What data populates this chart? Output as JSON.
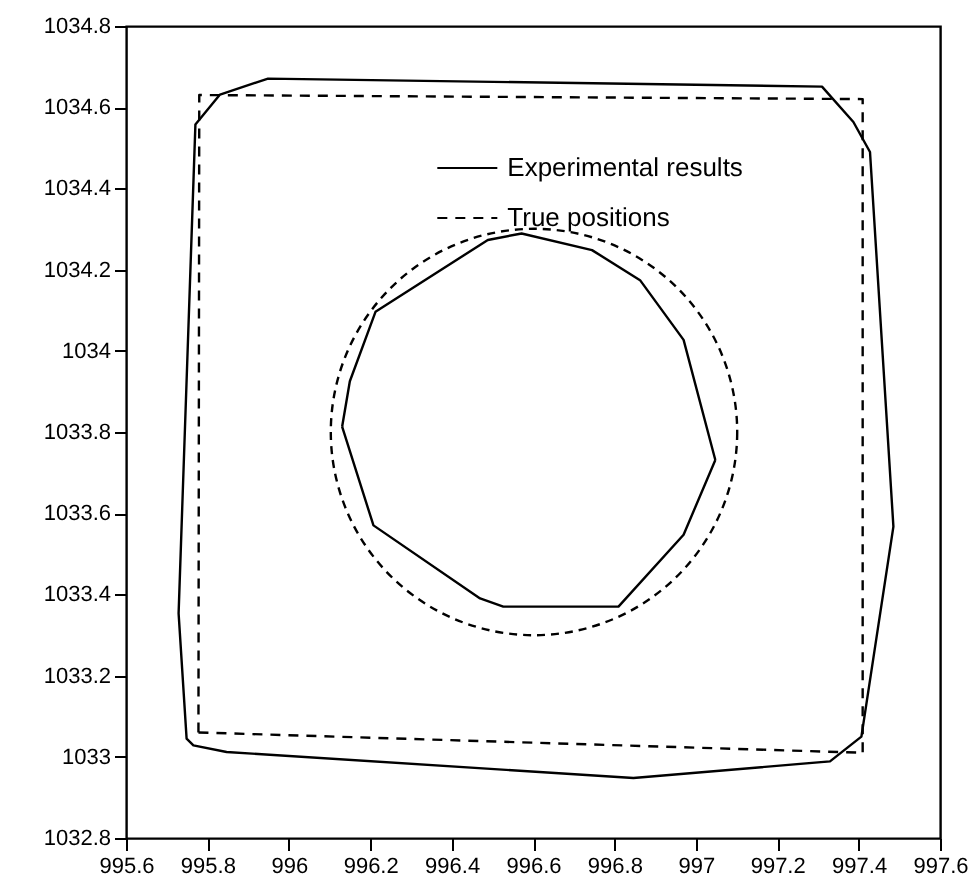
{
  "chart_data": {
    "type": "line",
    "xlim": [
      995.6,
      997.6
    ],
    "ylim": [
      1032.8,
      1034.8
    ],
    "xticks": [
      995.6,
      995.8,
      996,
      996.2,
      996.4,
      996.6,
      996.8,
      997,
      997.2,
      997.4,
      997.6
    ],
    "yticks": [
      1032.8,
      1033,
      1033.2,
      1033.4,
      1033.6,
      1033.8,
      1034,
      1034.2,
      1034.4,
      1034.6,
      1034.8
    ],
    "grid": false,
    "legend": "top",
    "marker": "none",
    "series": [
      {
        "name": "Experimental results",
        "color": "#000000",
        "line_style": "solid",
        "x": [
          996.131,
          996.15,
          996.213,
          996.489,
          996.572,
          996.745,
          996.863,
          996.97,
          997.048
        ],
        "values": [
          1033.813,
          1033.925,
          1034.096,
          1034.273,
          1034.289,
          1034.248,
          1034.174,
          1034.027,
          1033.731
        ]
      },
      {
        "color": "#000000",
        "line_style": "solid",
        "x": [
          996.131,
          996.208,
          996.47,
          996.527,
          996.81,
          996.97,
          997.048
        ],
        "values": [
          1033.813,
          1033.57,
          1033.39,
          1033.37,
          1033.37,
          1033.547,
          1033.731
        ]
      },
      {
        "name": "True positions",
        "color": "#000000",
        "line_style": "dashed",
        "x": [
          995.778,
          995.78,
          997.41,
          997.41
        ],
        "values": [
          1033.06,
          1034.63,
          1034.62,
          1033.01
        ]
      },
      {
        "color": "#000000",
        "line_style": "dashed",
        "x": [
          995.778,
          997.41
        ],
        "values": [
          1033.06,
          1033.01
        ]
      }
    ]
  }
}
